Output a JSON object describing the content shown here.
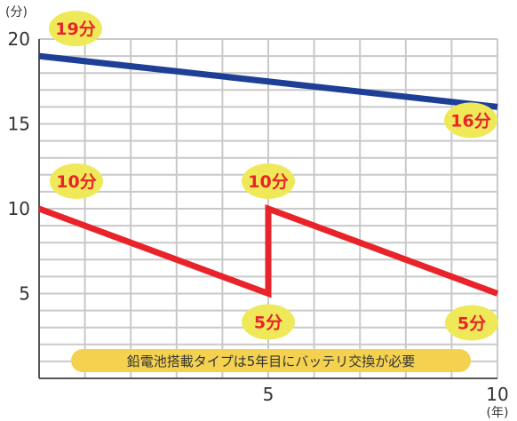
{
  "chart_data": {
    "type": "line",
    "x_unit": "(年)",
    "y_unit": "(分)",
    "xlim": [
      0,
      10
    ],
    "ylim": [
      0,
      20
    ],
    "x_ticks": [
      "5",
      "10"
    ],
    "y_ticks": [
      "5",
      "10",
      "15",
      "20"
    ],
    "grid": true,
    "series": [
      {
        "color": "#1d3f96",
        "x": [
          0,
          10
        ],
        "y": [
          19,
          16
        ]
      },
      {
        "color": "#e8242a",
        "x": [
          0,
          5,
          5,
          10
        ],
        "y": [
          10,
          5,
          10,
          5
        ]
      }
    ],
    "annotations": [
      {
        "text": "19分",
        "x": 0,
        "y": 19
      },
      {
        "text": "16分",
        "x": 10,
        "y": 16
      },
      {
        "text": "10分",
        "x": 0,
        "y": 10
      },
      {
        "text": "10分",
        "x": 5,
        "y": 10
      },
      {
        "text": "5分",
        "x": 5,
        "y": 5
      },
      {
        "text": "5分",
        "x": 10,
        "y": 5
      }
    ],
    "note": "鉛電池搭載タイプは5年目にバッテリ交換が必要",
    "label_bubble_color": "#efe95a",
    "note_color": "#f4d250"
  }
}
